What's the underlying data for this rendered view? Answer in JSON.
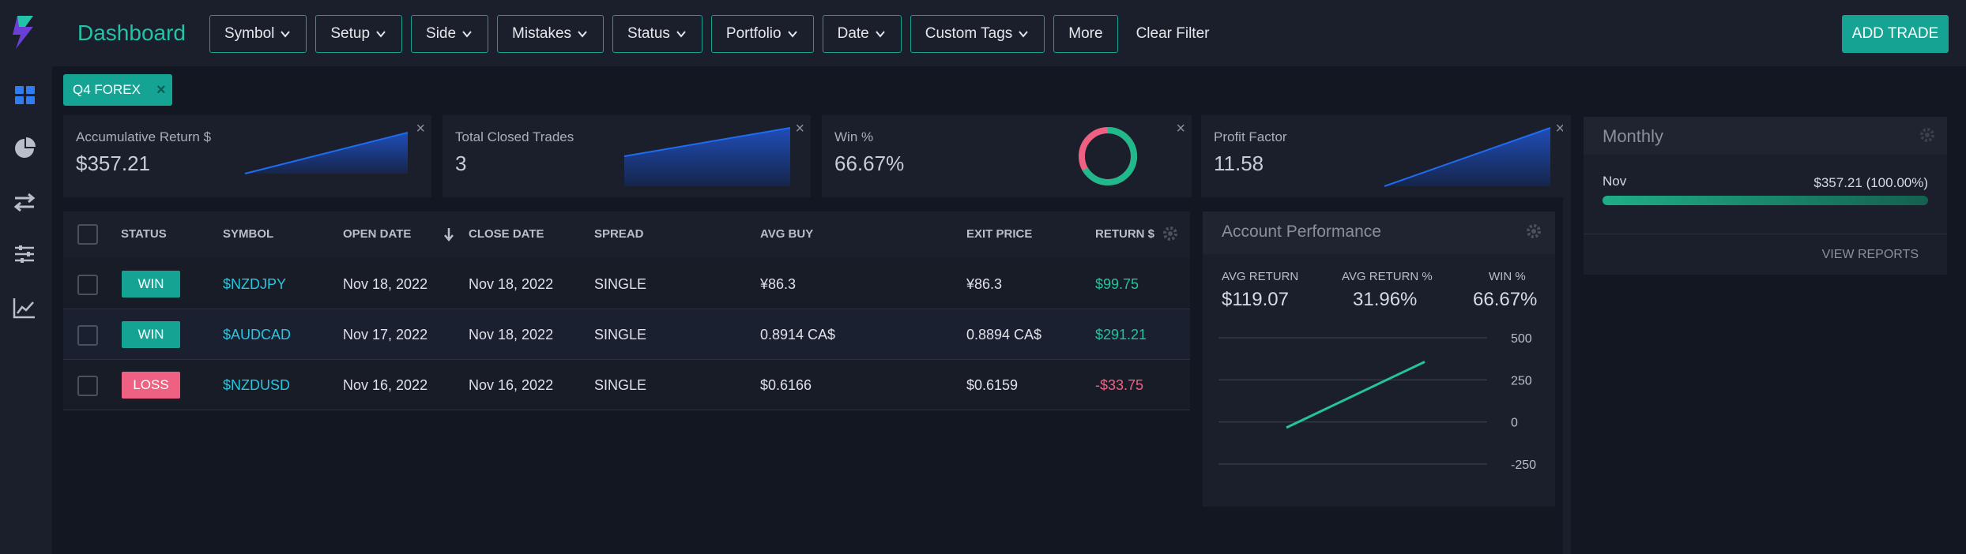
{
  "header": {
    "title": "Dashboard",
    "filters": [
      "Symbol",
      "Setup",
      "Side",
      "Mistakes",
      "Status",
      "Portfolio",
      "Date",
      "Custom Tags"
    ],
    "more_label": "More",
    "clear_filter_label": "Clear Filter",
    "add_trade_label": "ADD TRADE"
  },
  "sidebar": {
    "items": [
      "dashboard-icon",
      "reports-pie-icon",
      "trades-arrows-icon",
      "settings-sliders-icon",
      "analytics-chart-icon"
    ]
  },
  "tag": {
    "label": "Q4 FOREX",
    "close": "×"
  },
  "cards": [
    {
      "label": "Accumulative Return $",
      "value": "$357.21"
    },
    {
      "label": "Total Closed Trades",
      "value": "3"
    },
    {
      "label": "Win %",
      "value": "66.67%",
      "win_fraction": 0.6667
    },
    {
      "label": "Profit Factor",
      "value": "11.58"
    }
  ],
  "card_close": "×",
  "table": {
    "headers": [
      "STATUS",
      "SYMBOL",
      "OPEN DATE",
      "CLOSE DATE",
      "SPREAD",
      "AVG BUY",
      "EXIT PRICE",
      "RETURN $"
    ],
    "rows": [
      {
        "status": "WIN",
        "symbol": "$NZDJPY",
        "open": "Nov 18, 2022",
        "close": "Nov 18, 2022",
        "spread": "SINGLE",
        "avg_buy": "¥86.3",
        "exit": "¥86.3",
        "ret": "$99.75"
      },
      {
        "status": "WIN",
        "symbol": "$AUDCAD",
        "open": "Nov 17, 2022",
        "close": "Nov 18, 2022",
        "spread": "SINGLE",
        "avg_buy": "0.8914 CA$",
        "exit": "0.8894 CA$",
        "ret": "$291.21"
      },
      {
        "status": "LOSS",
        "symbol": "$NZDUSD",
        "open": "Nov 16, 2022",
        "close": "Nov 16, 2022",
        "spread": "SINGLE",
        "avg_buy": "$0.6166",
        "exit": "$0.6159",
        "ret": "-$33.75"
      }
    ]
  },
  "performance": {
    "title": "Account Performance",
    "stats": [
      {
        "label": "AVG RETURN",
        "value": "$119.07"
      },
      {
        "label": "AVG RETURN %",
        "value": "31.96%"
      },
      {
        "label": "WIN %",
        "value": "66.67%"
      }
    ]
  },
  "monthly": {
    "title": "Monthly",
    "month": "Nov",
    "value": "$357.21 (100.00%)",
    "share": 1.0,
    "view_reports": "VIEW REPORTS"
  },
  "colors": {
    "accent": "#15a494",
    "win": "#15a494",
    "loss": "#ef6183",
    "symbol": "#27c6df",
    "spark": "#1f6cf0"
  },
  "chart_data": {
    "type": "line",
    "ylim": [
      -250,
      500
    ],
    "yticks": [
      "500",
      "250",
      "0",
      "-250"
    ],
    "series": [
      {
        "values": [
          -33.75,
          357.21
        ]
      }
    ]
  }
}
